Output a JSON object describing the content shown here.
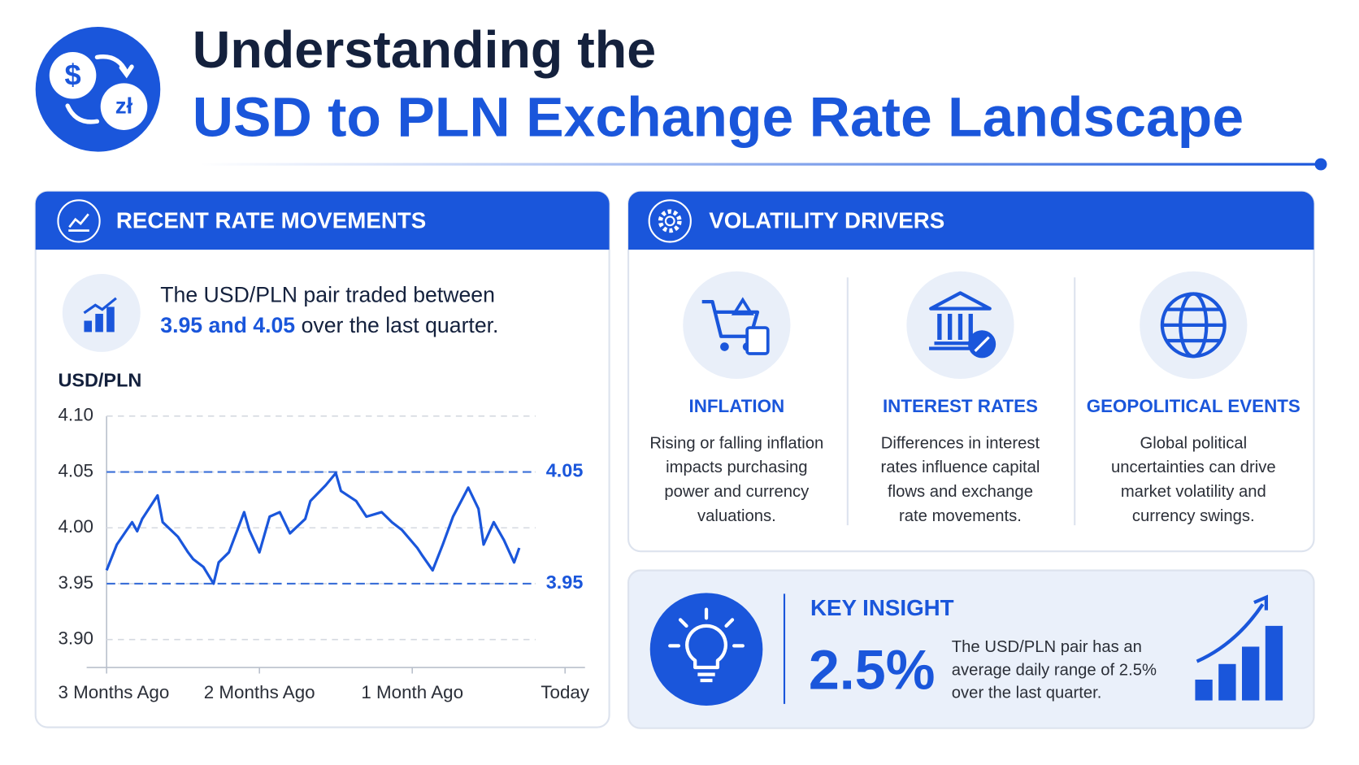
{
  "header": {
    "logo_symbols": [
      "$",
      "zł"
    ],
    "title_line1": "Understanding the",
    "title_line2": "USD to PLN Exchange Rate Landscape"
  },
  "left_panel": {
    "title": "RECENT RATE MOVEMENTS",
    "summary_line1": "The USD/PLN pair traded between",
    "summary_highlight": "3.95 and 4.05",
    "summary_rest": "over the last quarter."
  },
  "chart_data": {
    "type": "line",
    "y_label": "USD/PLN",
    "color": "#1a56db",
    "x": [
      -90,
      -88,
      -85,
      -84,
      -83,
      -80,
      -79,
      -76,
      -74,
      -73,
      -71,
      -69,
      -68,
      -66,
      -63,
      -62,
      -60,
      -58,
      -56,
      -54,
      -51,
      -50,
      -47,
      -45,
      -44,
      -41,
      -39,
      -36,
      -34,
      -32,
      -29,
      -28,
      -26,
      -24,
      -22,
      -19,
      -17,
      -16,
      -14,
      -12,
      -10,
      -9
    ],
    "values": [
      3.962,
      3.985,
      4.005,
      3.997,
      4.008,
      4.029,
      4.005,
      3.992,
      3.978,
      3.972,
      3.965,
      3.95,
      3.969,
      3.978,
      4.014,
      3.998,
      3.978,
      4.01,
      4.014,
      3.995,
      4.008,
      4.024,
      4.038,
      4.049,
      4.033,
      4.024,
      4.01,
      4.014,
      4.005,
      3.998,
      3.982,
      3.975,
      3.962,
      3.985,
      4.01,
      4.036,
      4.017,
      3.985,
      4.005,
      3.989,
      3.969,
      3.982
    ],
    "xlim": [
      -90,
      0
    ],
    "xticks": [
      {
        "value": -90,
        "label": "3 Months Ago"
      },
      {
        "value": -60,
        "label": "2 Months Ago"
      },
      {
        "value": -30,
        "label": "1 Month Ago"
      },
      {
        "value": 0,
        "label": "Today"
      }
    ],
    "ylim": [
      3.875,
      4.1
    ],
    "yticks": [
      {
        "value": 4.1,
        "label": "4.10"
      },
      4.05,
      {
        "value": 4.0,
        "label": "4.00"
      },
      3.95,
      {
        "value": 3.9,
        "label": "3.90"
      }
    ],
    "reference_lines": [
      4.05,
      3.95
    ],
    "grid": true
  },
  "drivers_panel": {
    "title": "VOLATILITY DRIVERS",
    "items": [
      {
        "title": "INFLATION",
        "lines": [
          "Rising or falling inflation",
          "impacts purchasing",
          "power and currency",
          "valuations."
        ]
      },
      {
        "title": "INTEREST RATES",
        "lines": [
          "Differences in interest",
          "rates influence capital",
          "flows and exchange",
          "rate movements."
        ]
      },
      {
        "title": "GEOPOLITICAL EVENTS",
        "lines": [
          "Global political",
          "uncertainties can drive",
          "market volatility and",
          "currency swings."
        ]
      }
    ]
  },
  "insight_panel": {
    "title": "KEY INSIGHT",
    "figure": "2.5%",
    "lines": [
      "The USD/PLN pair has an",
      "average daily range of 2.5%",
      "over the last quarter."
    ]
  }
}
